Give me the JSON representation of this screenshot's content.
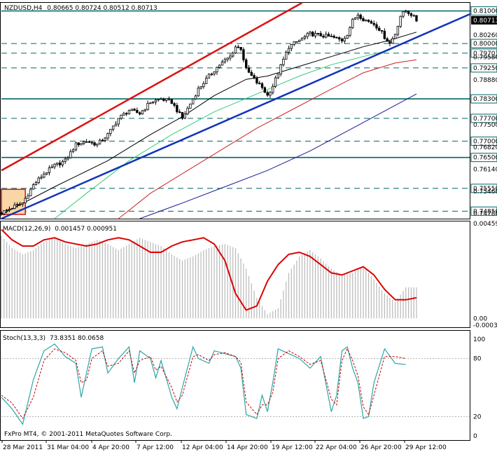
{
  "header": {
    "symbol": "NZDUSD,H4",
    "ohlc": "0.80665 0.80724 0.80512 0.80713"
  },
  "copyright": "FxPro MT4, © 2001-2011 MetaQuotes Software Corp.",
  "colors": {
    "background": "#ffffff",
    "candle": "#000000",
    "ma_black": "#000000",
    "ma_green": "#33cc77",
    "ma_red": "#cc2222",
    "ma_blue": "#1a1a99",
    "trend_red": "#dd1111",
    "trend_blue": "#1133bb",
    "level_line": "#006666",
    "macd_signal": "#dd0000",
    "macd_hist": "#b8b8b8",
    "stoch_main": "#2aa7a7",
    "stoch_signal": "#cc0000",
    "box_fill": "#f9d6a6",
    "box_border": "#dd1111"
  },
  "chart_data": [
    {
      "type": "candlestick",
      "name": "NZDUSD,H4",
      "ylim": [
        0.7462,
        0.8125
      ],
      "y_ticks": [
        "0.81000",
        "0.80713",
        "0.80260",
        "0.80000",
        "0.79703",
        "0.79580",
        "0.79250",
        "0.78880",
        "0.78300",
        "0.77700",
        "0.77500",
        "0.77000",
        "0.76820",
        "0.76500",
        "0.76140",
        "0.75550",
        "0.75460",
        "0.74850",
        "0.74780"
      ],
      "x_ticks": [
        "28 Mar 2011",
        "31 Mar 04:00",
        "4 Apr 20:00",
        "7 Apr 12:00",
        "12 Apr 04:00",
        "14 Apr 20:00",
        "19 Apr 12:00",
        "22 Apr 04:00",
        "26 Apr 20:00",
        "29 Apr 12:00"
      ],
      "key_levels": [
        {
          "label": "0.81000",
          "value": 0.81,
          "style": "solid"
        },
        {
          "label": "0.80000",
          "value": 0.8,
          "style": "dashed"
        },
        {
          "label": "0.79703",
          "value": 0.79703,
          "style": "dashed"
        },
        {
          "label": "0.79250",
          "value": 0.7925,
          "style": "dashed"
        },
        {
          "label": "0.78300",
          "value": 0.783,
          "style": "solid"
        },
        {
          "label": "0.77700",
          "value": 0.777,
          "style": "dashed"
        },
        {
          "label": "0.77000",
          "value": 0.77,
          "style": "dashed"
        },
        {
          "label": "0.76500",
          "value": 0.765,
          "style": "solid"
        },
        {
          "label": "0.75550",
          "value": 0.7555,
          "style": "dashed"
        },
        {
          "label": "0.74850",
          "value": 0.7485,
          "style": "dashed"
        }
      ],
      "current_price": "0.80713",
      "close_path": [
        [
          0,
          0.748
        ],
        [
          5,
          0.75
        ],
        [
          8,
          0.751
        ],
        [
          12,
          0.7565
        ],
        [
          16,
          0.76
        ],
        [
          20,
          0.7625
        ],
        [
          24,
          0.764
        ],
        [
          28,
          0.769
        ],
        [
          32,
          0.77
        ],
        [
          36,
          0.769
        ],
        [
          40,
          0.772
        ],
        [
          44,
          0.777
        ],
        [
          48,
          0.7795
        ],
        [
          52,
          0.7785
        ],
        [
          56,
          0.782
        ],
        [
          60,
          0.783
        ],
        [
          64,
          0.782
        ],
        [
          68,
          0.777
        ],
        [
          70,
          0.78
        ],
        [
          74,
          0.786
        ],
        [
          78,
          0.79
        ],
        [
          82,
          0.7935
        ],
        [
          86,
          0.796
        ],
        [
          88,
          0.799
        ],
        [
          90,
          0.7985
        ],
        [
          92,
          0.792
        ],
        [
          96,
          0.788
        ],
        [
          98,
          0.7865
        ],
        [
          100,
          0.784
        ],
        [
          102,
          0.787
        ],
        [
          106,
          0.795
        ],
        [
          108,
          0.799
        ],
        [
          112,
          0.801
        ],
        [
          116,
          0.803
        ],
        [
          120,
          0.8025
        ],
        [
          124,
          0.802
        ],
        [
          128,
          0.801
        ],
        [
          130,
          0.803
        ],
        [
          132,
          0.807
        ],
        [
          134,
          0.809
        ],
        [
          136,
          0.8075
        ],
        [
          140,
          0.806
        ],
        [
          142,
          0.8045
        ],
        [
          144,
          0.802
        ],
        [
          146,
          0.8
        ],
        [
          148,
          0.803
        ],
        [
          150,
          0.8085
        ],
        [
          152,
          0.81
        ],
        [
          154,
          0.809
        ],
        [
          156,
          0.8071
        ]
      ],
      "moving_averages": [
        {
          "color": "black",
          "points": [
            [
              0,
              0.7475
            ],
            [
              20,
              0.756
            ],
            [
              40,
              0.764
            ],
            [
              56,
              0.772
            ],
            [
              68,
              0.7775
            ],
            [
              80,
              0.784
            ],
            [
              92,
              0.789
            ],
            [
              100,
              0.79
            ],
            [
              112,
              0.793
            ],
            [
              124,
              0.796
            ],
            [
              136,
              0.799
            ],
            [
              146,
              0.801
            ],
            [
              156,
              0.8035
            ]
          ]
        },
        {
          "color": "green",
          "points": [
            [
              20,
              0.7462
            ],
            [
              32,
              0.754
            ],
            [
              48,
              0.764
            ],
            [
              64,
              0.772
            ],
            [
              80,
              0.779
            ],
            [
              96,
              0.7845
            ],
            [
              112,
              0.79
            ],
            [
              124,
              0.7935
            ],
            [
              136,
              0.796
            ],
            [
              146,
              0.798
            ]
          ]
        },
        {
          "color": "red",
          "points": [
            [
              44,
              0.7462
            ],
            [
              56,
              0.754
            ],
            [
              70,
              0.761
            ],
            [
              84,
              0.768
            ],
            [
              96,
              0.774
            ],
            [
              110,
              0.78
            ],
            [
              124,
              0.786
            ],
            [
              136,
              0.791
            ],
            [
              148,
              0.794
            ],
            [
              156,
              0.795
            ]
          ]
        },
        {
          "color": "blue",
          "points": [
            [
              52,
              0.7462
            ],
            [
              68,
              0.751
            ],
            [
              84,
              0.756
            ],
            [
              100,
              0.761
            ],
            [
              116,
              0.767
            ],
            [
              132,
              0.774
            ],
            [
              148,
              0.781
            ],
            [
              156,
              0.7845
            ]
          ]
        }
      ],
      "trendlines": [
        {
          "color": "red",
          "from": [
            0,
            0.761
          ],
          "to": [
            113,
            0.8125
          ]
        },
        {
          "color": "blue",
          "from": [
            0,
            0.7462
          ],
          "to": [
            176,
            0.809
          ]
        }
      ],
      "highlight_box": {
        "x": [
          0,
          9
        ],
        "y": [
          0.7475,
          0.7552
        ]
      }
    },
    {
      "type": "bar+line",
      "name": "MACD(12,26,9)",
      "header_values": "0.001457 0.000951",
      "ylim": [
        -0.00033,
        0.00459
      ],
      "y_ticks": [
        "0.00459",
        "0.00",
        "-0.00033"
      ],
      "histogram": [
        [
          0,
          0.004
        ],
        [
          4,
          0.0034
        ],
        [
          8,
          0.0031
        ],
        [
          12,
          0.0033
        ],
        [
          16,
          0.0037
        ],
        [
          20,
          0.0039
        ],
        [
          24,
          0.0036
        ],
        [
          28,
          0.0034
        ],
        [
          32,
          0.0036
        ],
        [
          36,
          0.0038
        ],
        [
          40,
          0.0036
        ],
        [
          44,
          0.0033
        ],
        [
          48,
          0.0036
        ],
        [
          52,
          0.0039
        ],
        [
          56,
          0.0037
        ],
        [
          60,
          0.0035
        ],
        [
          64,
          0.0031
        ],
        [
          68,
          0.0028
        ],
        [
          72,
          0.003
        ],
        [
          76,
          0.0033
        ],
        [
          80,
          0.0035
        ],
        [
          84,
          0.0036
        ],
        [
          88,
          0.0034
        ],
        [
          92,
          0.0024
        ],
        [
          96,
          0.001
        ],
        [
          100,
          0.0002
        ],
        [
          104,
          0.0005
        ],
        [
          108,
          0.0022
        ],
        [
          112,
          0.003
        ],
        [
          116,
          0.0033
        ],
        [
          120,
          0.0029
        ],
        [
          124,
          0.0024
        ],
        [
          128,
          0.0021
        ],
        [
          132,
          0.0022
        ],
        [
          136,
          0.0025
        ],
        [
          140,
          0.0019
        ],
        [
          144,
          0.0012
        ],
        [
          148,
          0.0008
        ],
        [
          152,
          0.0015
        ],
        [
          156,
          0.0015
        ]
      ],
      "signal": [
        [
          0,
          0.0043
        ],
        [
          4,
          0.0038
        ],
        [
          8,
          0.0035
        ],
        [
          12,
          0.0035
        ],
        [
          16,
          0.0038
        ],
        [
          20,
          0.0039
        ],
        [
          24,
          0.0037
        ],
        [
          28,
          0.0036
        ],
        [
          32,
          0.0035
        ],
        [
          36,
          0.0036
        ],
        [
          40,
          0.0038
        ],
        [
          44,
          0.0039
        ],
        [
          48,
          0.0038
        ],
        [
          52,
          0.0035
        ],
        [
          56,
          0.0032
        ],
        [
          60,
          0.0032
        ],
        [
          64,
          0.0035
        ],
        [
          68,
          0.0037
        ],
        [
          72,
          0.0038
        ],
        [
          76,
          0.0039
        ],
        [
          80,
          0.0036
        ],
        [
          84,
          0.0028
        ],
        [
          88,
          0.0012
        ],
        [
          92,
          0.0004
        ],
        [
          96,
          0.0006
        ],
        [
          100,
          0.0018
        ],
        [
          104,
          0.0026
        ],
        [
          108,
          0.0031
        ],
        [
          112,
          0.0032
        ],
        [
          116,
          0.003
        ],
        [
          120,
          0.0026
        ],
        [
          124,
          0.0022
        ],
        [
          128,
          0.0021
        ],
        [
          132,
          0.0023
        ],
        [
          136,
          0.0025
        ],
        [
          140,
          0.0021
        ],
        [
          144,
          0.0014
        ],
        [
          148,
          0.0009
        ],
        [
          152,
          0.0009
        ],
        [
          156,
          0.001
        ]
      ]
    },
    {
      "type": "line",
      "name": "Stoch(13,3,3)",
      "header_values": "73.8351 80.0658",
      "ylim": [
        0,
        100
      ],
      "y_ticks": [
        "100",
        "80",
        "20",
        "0"
      ],
      "main": [
        [
          0,
          40
        ],
        [
          4,
          28
        ],
        [
          8,
          12
        ],
        [
          12,
          58
        ],
        [
          16,
          88
        ],
        [
          20,
          95
        ],
        [
          24,
          82
        ],
        [
          28,
          75
        ],
        [
          30,
          40
        ],
        [
          32,
          65
        ],
        [
          34,
          90
        ],
        [
          38,
          92
        ],
        [
          40,
          65
        ],
        [
          44,
          80
        ],
        [
          48,
          92
        ],
        [
          50,
          55
        ],
        [
          52,
          88
        ],
        [
          56,
          80
        ],
        [
          58,
          60
        ],
        [
          60,
          78
        ],
        [
          64,
          40
        ],
        [
          66,
          28
        ],
        [
          68,
          50
        ],
        [
          72,
          92
        ],
        [
          74,
          80
        ],
        [
          78,
          75
        ],
        [
          80,
          88
        ],
        [
          84,
          85
        ],
        [
          88,
          82
        ],
        [
          90,
          70
        ],
        [
          92,
          22
        ],
        [
          96,
          18
        ],
        [
          98,
          42
        ],
        [
          100,
          25
        ],
        [
          102,
          55
        ],
        [
          104,
          90
        ],
        [
          108,
          85
        ],
        [
          112,
          80
        ],
        [
          116,
          70
        ],
        [
          120,
          82
        ],
        [
          124,
          25
        ],
        [
          126,
          42
        ],
        [
          128,
          88
        ],
        [
          130,
          92
        ],
        [
          132,
          70
        ],
        [
          134,
          55
        ],
        [
          136,
          18
        ],
        [
          138,
          20
        ],
        [
          140,
          55
        ],
        [
          144,
          90
        ],
        [
          148,
          75
        ],
        [
          152,
          73.8
        ]
      ],
      "signal": [
        [
          0,
          42
        ],
        [
          4,
          34
        ],
        [
          8,
          18
        ],
        [
          12,
          40
        ],
        [
          16,
          78
        ],
        [
          20,
          90
        ],
        [
          24,
          86
        ],
        [
          28,
          78
        ],
        [
          30,
          55
        ],
        [
          32,
          58
        ],
        [
          34,
          80
        ],
        [
          38,
          88
        ],
        [
          40,
          72
        ],
        [
          44,
          75
        ],
        [
          48,
          88
        ],
        [
          50,
          65
        ],
        [
          52,
          78
        ],
        [
          56,
          82
        ],
        [
          58,
          68
        ],
        [
          60,
          72
        ],
        [
          64,
          50
        ],
        [
          66,
          35
        ],
        [
          68,
          42
        ],
        [
          72,
          82
        ],
        [
          74,
          84
        ],
        [
          78,
          78
        ],
        [
          80,
          84
        ],
        [
          84,
          86
        ],
        [
          88,
          82
        ],
        [
          90,
          76
        ],
        [
          92,
          35
        ],
        [
          96,
          22
        ],
        [
          98,
          32
        ],
        [
          100,
          32
        ],
        [
          102,
          45
        ],
        [
          104,
          80
        ],
        [
          108,
          88
        ],
        [
          112,
          82
        ],
        [
          116,
          74
        ],
        [
          120,
          78
        ],
        [
          124,
          38
        ],
        [
          126,
          32
        ],
        [
          128,
          78
        ],
        [
          130,
          90
        ],
        [
          132,
          78
        ],
        [
          134,
          62
        ],
        [
          136,
          30
        ],
        [
          138,
          22
        ],
        [
          140,
          42
        ],
        [
          144,
          82
        ],
        [
          148,
          82
        ],
        [
          152,
          80.1
        ]
      ]
    }
  ]
}
